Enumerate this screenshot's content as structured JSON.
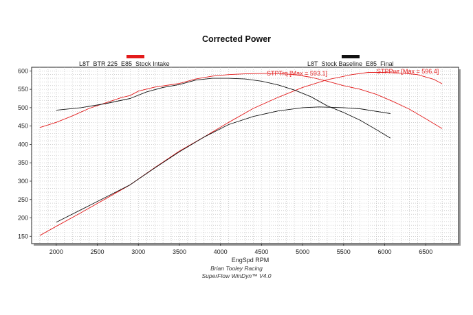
{
  "chart_data": {
    "type": "line",
    "title": "Corrected Power",
    "xlabel": "EngSpd RPM",
    "ylabel": "",
    "xlim": [
      1700,
      6900
    ],
    "ylim": [
      130,
      610
    ],
    "x_ticks": [
      2000,
      2500,
      3000,
      3500,
      4000,
      4500,
      5000,
      5500,
      6000,
      6500
    ],
    "y_ticks": [
      150,
      200,
      250,
      300,
      350,
      400,
      450,
      500,
      550,
      600
    ],
    "grid": true,
    "legend": [
      {
        "name": "L8T_BTR 225_E85_Stock Intake",
        "color": "#e31b1b"
      },
      {
        "name": "L8T_Stock Baseline_E85_Final",
        "color": "#111111"
      }
    ],
    "annotations": [
      {
        "text": "STPTrq [Max = 593.1]",
        "color": "#e31b1b"
      },
      {
        "text": "STPPwr [Max = 596.4]",
        "color": "#e31b1b"
      }
    ],
    "series": [
      {
        "name": "L8T_BTR 225_E85_Stock Intake",
        "metric": "STPTrq",
        "color": "#e31b1b",
        "x": [
          1800,
          2000,
          2200,
          2400,
          2600,
          2800,
          2900,
          3000,
          3200,
          3500,
          3700,
          3900,
          4100,
          4300,
          4500,
          4700,
          4900,
          5100,
          5300,
          5500,
          5700,
          5900,
          6100,
          6300,
          6500,
          6700
        ],
        "y": [
          446,
          460,
          478,
          498,
          513,
          528,
          533,
          545,
          556,
          566,
          578,
          586,
          590,
          592,
          593,
          593,
          590,
          583,
          572,
          560,
          550,
          536,
          517,
          496,
          470,
          443
        ]
      },
      {
        "name": "L8T_BTR 225_E85_Stock Intake",
        "metric": "STPPwr",
        "color": "#e31b1b",
        "x": [
          1800,
          2000,
          2300,
          2600,
          2900,
          3200,
          3500,
          3800,
          4100,
          4400,
          4700,
          5000,
          5300,
          5600,
          5800,
          6000,
          6200,
          6400,
          6600,
          6700
        ],
        "y": [
          152,
          177,
          214,
          252,
          290,
          337,
          382,
          420,
          460,
          498,
          528,
          555,
          576,
          590,
          596,
          596,
          594,
          590,
          577,
          565
        ]
      },
      {
        "name": "L8T_Stock Baseline_E85_Final",
        "metric": "STPTrq",
        "color": "#111111",
        "x": [
          2000,
          2300,
          2600,
          2900,
          3100,
          3300,
          3500,
          3700,
          3900,
          4100,
          4300,
          4500,
          4700,
          4900,
          5100,
          5300,
          5500,
          5700,
          5900,
          6070
        ],
        "y": [
          493,
          500,
          511,
          525,
          543,
          555,
          563,
          575,
          580,
          580,
          578,
          572,
          562,
          548,
          530,
          505,
          487,
          466,
          440,
          417
        ]
      },
      {
        "name": "L8T_Stock Baseline_E85_Final",
        "metric": "STPPwr",
        "color": "#111111",
        "x": [
          2000,
          2300,
          2600,
          2900,
          3200,
          3500,
          3800,
          4100,
          4400,
          4700,
          5000,
          5200,
          5500,
          5700,
          5900,
          6070
        ],
        "y": [
          188,
          222,
          256,
          290,
          336,
          380,
          420,
          454,
          476,
          491,
          500,
          502,
          500,
          497,
          490,
          484
        ]
      }
    ]
  },
  "footer": {
    "line1": "Brian Tooley Racing",
    "line2": "SuperFlow WinDyn™ V4.0"
  }
}
